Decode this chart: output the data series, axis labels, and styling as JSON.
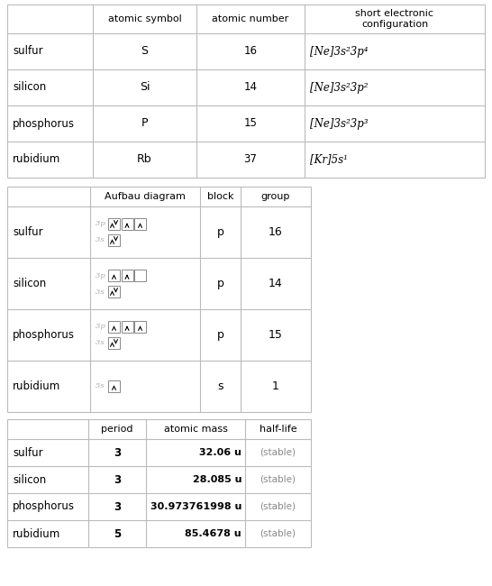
{
  "elements": [
    "sulfur",
    "silicon",
    "phosphorus",
    "rubidium"
  ],
  "atomic_symbols": [
    "S",
    "Si",
    "P",
    "Rb"
  ],
  "atomic_numbers": [
    "16",
    "14",
    "15",
    "37"
  ],
  "short_configs": [
    "[Ne]3s²3p⁴",
    "[Ne]3s²3p²",
    "[Ne]3s²3p³",
    "[Kr]5s¹"
  ],
  "blocks": [
    "p",
    "p",
    "p",
    "s"
  ],
  "groups": [
    "16",
    "14",
    "15",
    "1"
  ],
  "periods": [
    "3",
    "3",
    "3",
    "5"
  ],
  "atomic_masses": [
    "32.06 u",
    "28.085 u",
    "30.973761998 u",
    "85.4678 u"
  ],
  "half_lives": [
    "(stable)",
    "(stable)",
    "(stable)",
    "(stable)"
  ],
  "aufbau_3p": [
    [
      2,
      1,
      1
    ],
    [
      1,
      1,
      0
    ],
    [
      1,
      1,
      1
    ],
    null
  ],
  "aufbau_3s": [
    2,
    2,
    2,
    null
  ],
  "aufbau_5s": [
    null,
    null,
    null,
    1
  ],
  "bg_color": "#ffffff",
  "line_color": "#bbbbbb",
  "gap_color": "#f0f0f0"
}
